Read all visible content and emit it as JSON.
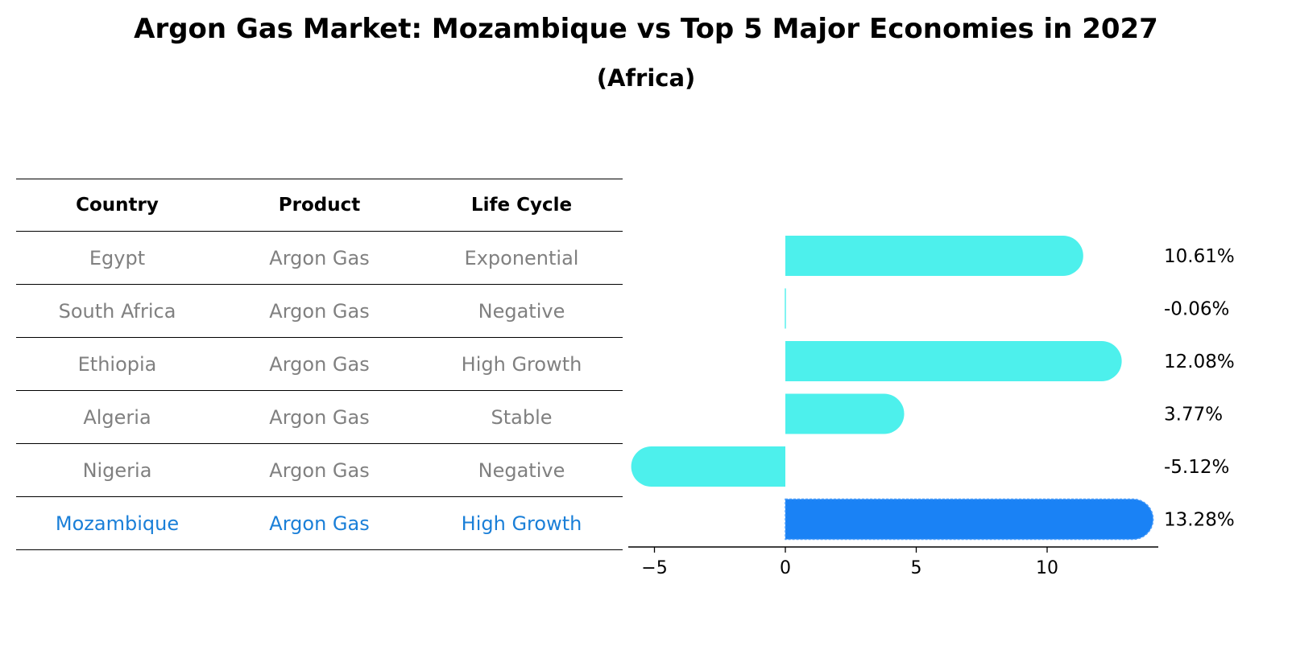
{
  "header": {
    "title": "Argon Gas Market: Mozambique vs Top 5 Major Economies in 2027",
    "subtitle": "(Africa)"
  },
  "table": {
    "columns": [
      "Country",
      "Product",
      "Life Cycle"
    ],
    "rows": [
      [
        "Egypt",
        "Argon Gas",
        "Exponential"
      ],
      [
        "South Africa",
        "Argon Gas",
        "Negative"
      ],
      [
        "Ethiopia",
        "Argon Gas",
        "High Growth"
      ],
      [
        "Algeria",
        "Argon Gas",
        "Stable"
      ],
      [
        "Nigeria",
        "Argon Gas",
        "Negative"
      ],
      [
        "Mozambique",
        "Argon Gas",
        "High Growth"
      ]
    ],
    "highlight_row": 5
  },
  "chart_data": {
    "type": "bar",
    "orientation": "horizontal",
    "categories": [
      "Egypt",
      "South Africa",
      "Ethiopia",
      "Algeria",
      "Nigeria",
      "Mozambique"
    ],
    "values": [
      10.61,
      -0.06,
      12.08,
      3.77,
      -5.12,
      13.28
    ],
    "data_labels": [
      "10.61%",
      "-0.06%",
      "12.08%",
      "3.77%",
      "-5.12%",
      "13.28%"
    ],
    "xlim": [
      -6,
      14
    ],
    "xticks": [
      -5,
      0,
      5,
      10
    ],
    "xtick_labels": [
      "−5",
      "0",
      "5",
      "10"
    ],
    "grid": false,
    "highlight_index": 5,
    "colors": {
      "default": "#4df0ec",
      "highlight": "#1a82f5"
    }
  }
}
